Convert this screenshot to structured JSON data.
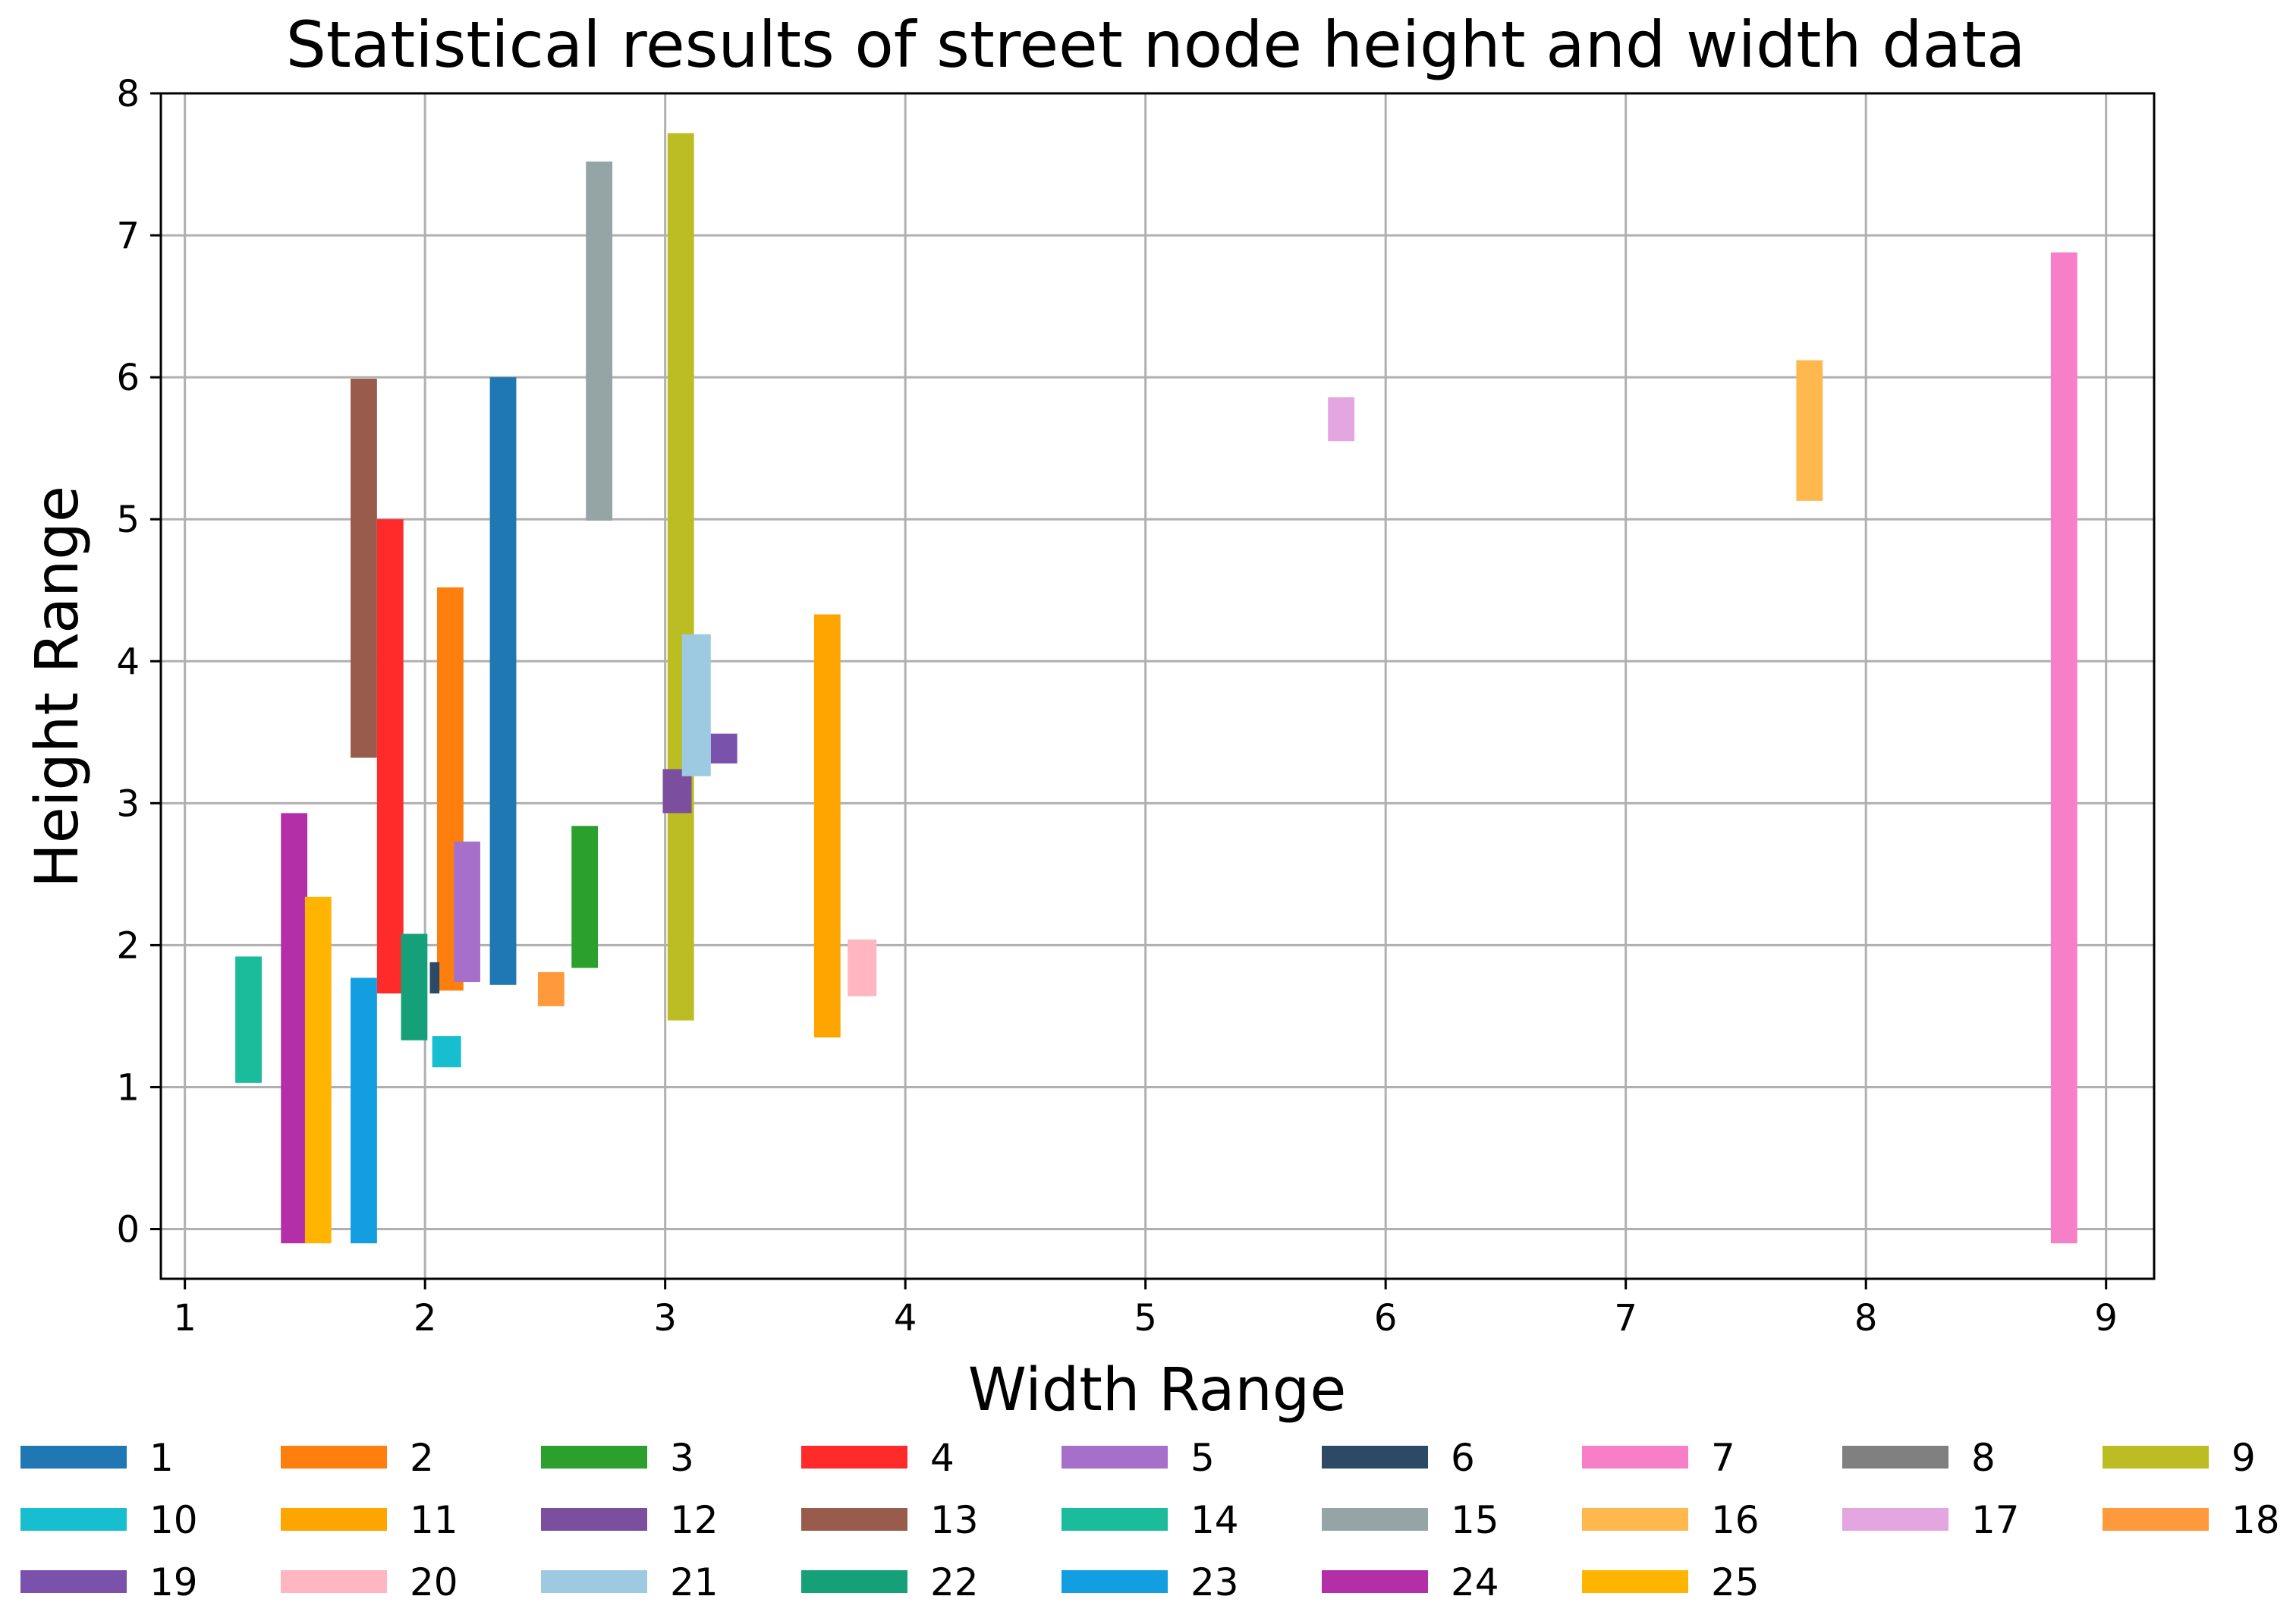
{
  "chart_data": {
    "type": "bar",
    "title": "Statistical results of street node height and width data",
    "xlabel": "Width Range",
    "ylabel": "Height Range",
    "xlim": [
      0.9,
      9.2
    ],
    "ylim": [
      -0.35,
      8.0
    ],
    "xticks": [
      1,
      2,
      3,
      4,
      5,
      6,
      7,
      8,
      9
    ],
    "yticks": [
      0,
      1,
      2,
      3,
      4,
      5,
      6,
      7,
      8
    ],
    "grid": true,
    "legend_position": "bottom",
    "series": [
      {
        "name": "1",
        "color": "#1f77b4",
        "x": [
          2.27,
          2.38
        ],
        "y": [
          1.72,
          6.0
        ]
      },
      {
        "name": "2",
        "color": "#ff7f0e",
        "x": [
          2.05,
          2.16
        ],
        "y": [
          1.68,
          4.52
        ]
      },
      {
        "name": "3",
        "color": "#2ca02c",
        "x": [
          2.61,
          2.72
        ],
        "y": [
          1.84,
          2.84
        ]
      },
      {
        "name": "4",
        "color": "#ff2a2a",
        "x": [
          1.8,
          1.91
        ],
        "y": [
          1.66,
          5.0
        ]
      },
      {
        "name": "5",
        "color": "#a66fc9",
        "x": [
          2.12,
          2.23
        ],
        "y": [
          1.74,
          2.73
        ]
      },
      {
        "name": "6",
        "color": "#2c4a66",
        "x": [
          2.02,
          2.06
        ],
        "y": [
          1.66,
          1.88
        ]
      },
      {
        "name": "7",
        "color": "#f77fc7",
        "x": [
          8.77,
          8.88
        ],
        "y": [
          -0.1,
          6.88
        ]
      },
      {
        "name": "8",
        "color": "#808080",
        "x": [],
        "y": []
      },
      {
        "name": "9",
        "color": "#bcbd22",
        "x": [
          3.01,
          3.12
        ],
        "y": [
          1.47,
          7.72
        ]
      },
      {
        "name": "10",
        "color": "#17becf",
        "x": [
          2.03,
          2.15
        ],
        "y": [
          1.14,
          1.36
        ]
      },
      {
        "name": "11",
        "color": "#ffa500",
        "x": [
          3.62,
          3.73
        ],
        "y": [
          1.35,
          4.33
        ]
      },
      {
        "name": "12",
        "color": "#7b4f9e",
        "x": [
          2.99,
          3.11
        ],
        "y": [
          2.93,
          3.24
        ]
      },
      {
        "name": "13",
        "color": "#995c4c",
        "x": [
          1.69,
          1.8
        ],
        "y": [
          3.32,
          5.99
        ]
      },
      {
        "name": "14",
        "color": "#1abc9c",
        "x": [
          1.21,
          1.32
        ],
        "y": [
          1.03,
          1.92
        ]
      },
      {
        "name": "15",
        "color": "#95a5a6",
        "x": [
          2.67,
          2.78
        ],
        "y": [
          4.99,
          7.52
        ]
      },
      {
        "name": "16",
        "color": "#ffb84d",
        "x": [
          7.71,
          7.82
        ],
        "y": [
          5.13,
          6.12
        ]
      },
      {
        "name": "17",
        "color": "#e3a6e0",
        "x": [
          5.76,
          5.87
        ],
        "y": [
          5.55,
          5.86
        ]
      },
      {
        "name": "18",
        "color": "#ff9a3c",
        "x": [
          2.47,
          2.58
        ],
        "y": [
          1.57,
          1.81
        ]
      },
      {
        "name": "19",
        "color": "#7b52ab",
        "x": [
          3.19,
          3.3
        ],
        "y": [
          3.28,
          3.49
        ]
      },
      {
        "name": "20",
        "color": "#ffb6c1",
        "x": [
          3.76,
          3.88
        ],
        "y": [
          1.64,
          2.04
        ]
      },
      {
        "name": "21",
        "color": "#9ecae1",
        "x": [
          3.07,
          3.19
        ],
        "y": [
          3.19,
          4.19
        ]
      },
      {
        "name": "22",
        "color": "#16a07a",
        "x": [
          1.9,
          2.01
        ],
        "y": [
          1.33,
          2.08
        ]
      },
      {
        "name": "23",
        "color": "#129ee0",
        "x": [
          1.69,
          1.8
        ],
        "y": [
          -0.1,
          1.77
        ]
      },
      {
        "name": "24",
        "color": "#b22fa8",
        "x": [
          1.4,
          1.51
        ],
        "y": [
          -0.1,
          2.93
        ]
      },
      {
        "name": "25",
        "color": "#ffb400",
        "x": [
          1.5,
          1.61
        ],
        "y": [
          -0.1,
          2.34
        ]
      }
    ]
  }
}
